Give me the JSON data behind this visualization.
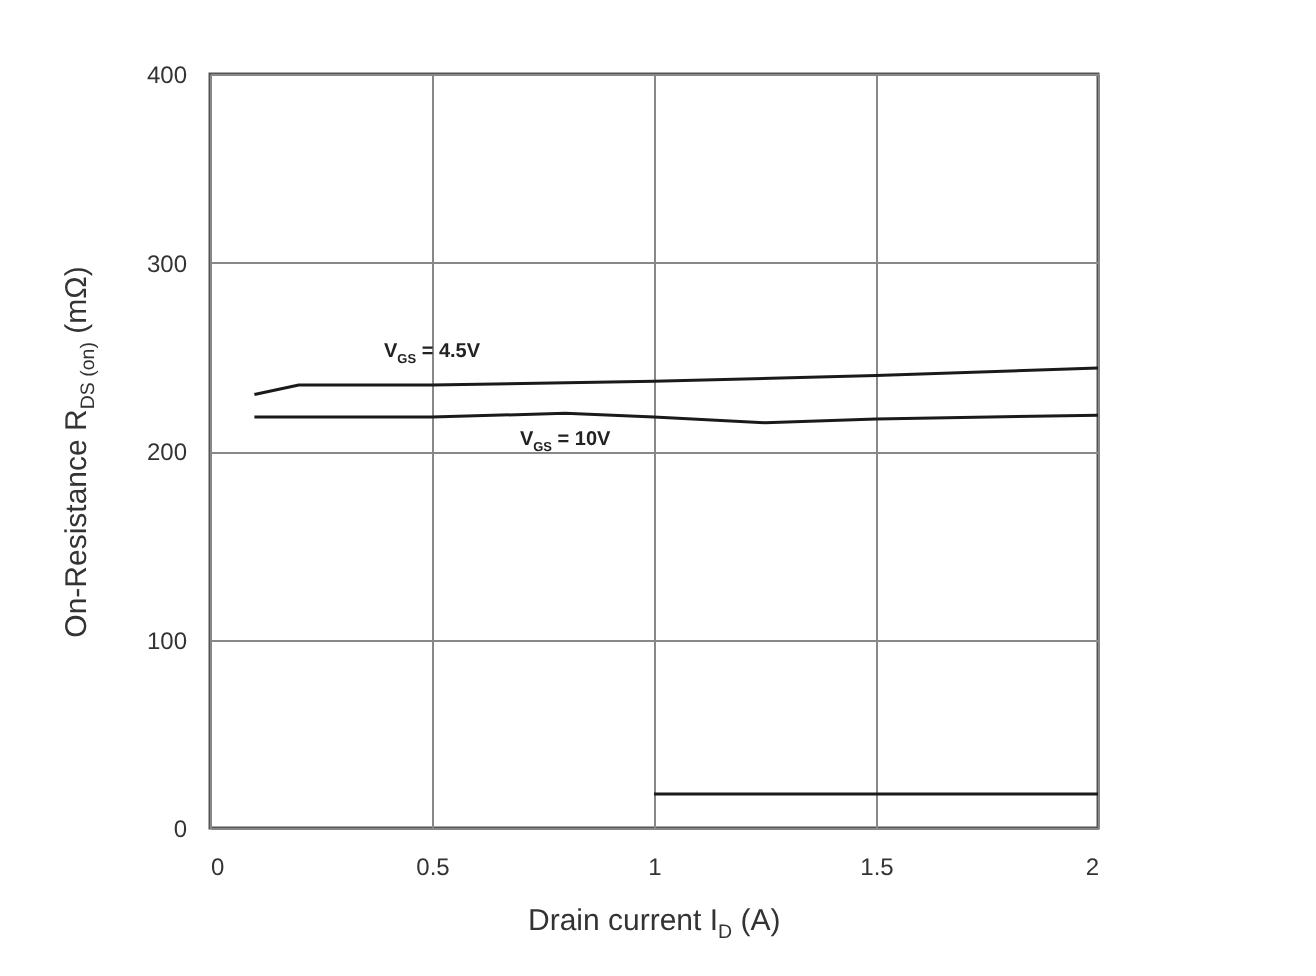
{
  "chart_data": {
    "type": "line",
    "xlabel": "Drain current I$_{D}$ (A)",
    "ylabel": "On-Resistance R$_{DS (on)}$ (mΩ)",
    "xlim": [
      0,
      2
    ],
    "xticks": [
      0,
      0.5,
      1,
      1.5,
      2
    ],
    "ylim": [
      0,
      400
    ],
    "yticks": [
      0,
      100,
      200,
      300,
      400
    ],
    "grid": true,
    "line_style": "solid",
    "series": [
      {
        "color": "#1a1a1a",
        "x": [
          0.1,
          0.2,
          0.5,
          1,
          1.5,
          2
        ],
        "values": [
          230,
          235,
          235,
          237,
          240,
          244
        ]
      },
      {
        "color": "#1a1a1a",
        "x": [
          0.1,
          0.5,
          0.8,
          1,
          1.25,
          1.5,
          2
        ],
        "values": [
          218,
          218,
          220,
          218,
          215,
          217,
          219
        ]
      },
      {
        "color": "#1a1a1a",
        "x": [
          1,
          2
        ],
        "values": [
          18,
          18
        ]
      }
    ],
    "annotations": [
      "V$_{GS}$ = 4.5V",
      "V$_{GS}$ = 10V"
    ]
  }
}
